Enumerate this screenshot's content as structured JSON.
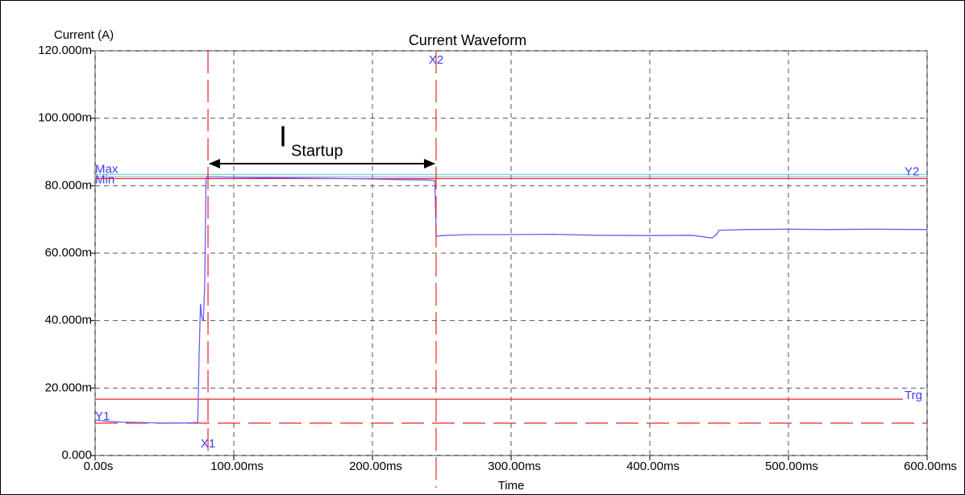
{
  "chart_data": {
    "type": "line",
    "title": "Current Waveform",
    "y_label": "Current (A)",
    "x_label": "Time",
    "color": "#6b5cf0",
    "x": [
      0,
      0.01,
      0.02,
      0.03,
      0.04,
      0.05,
      0.06,
      0.07,
      0.074,
      0.075,
      0.076,
      0.077,
      0.078,
      0.079,
      0.08,
      0.081,
      0.082,
      0.09,
      0.1,
      0.12,
      0.14,
      0.16,
      0.18,
      0.2,
      0.22,
      0.24,
      0.245,
      0.246,
      0.25,
      0.27,
      0.3,
      0.33,
      0.36,
      0.4,
      0.43,
      0.445,
      0.448,
      0.45,
      0.47,
      0.5,
      0.53,
      0.56,
      0.6
    ],
    "values": [
      0.0105,
      0.0101,
      0.0099,
      0.0098,
      0.0097,
      0.0096,
      0.0096,
      0.0097,
      0.0098,
      0.03,
      0.045,
      0.041,
      0.04,
      0.05,
      0.082,
      0.0828,
      0.0826,
      0.0826,
      0.0825,
      0.0824,
      0.0823,
      0.0822,
      0.0821,
      0.082,
      0.0818,
      0.0817,
      0.0815,
      0.065,
      0.0652,
      0.0655,
      0.0655,
      0.0656,
      0.0653,
      0.0652,
      0.0653,
      0.0645,
      0.0655,
      0.0668,
      0.067,
      0.0671,
      0.067,
      0.0671,
      0.067
    ],
    "xlim": [
      0,
      0.6
    ],
    "ylim": [
      0,
      0.12
    ],
    "xticks": [
      {
        "value": 0,
        "label": "0.00s"
      },
      {
        "value": 0.1,
        "label": "100.00ms"
      },
      {
        "value": 0.2,
        "label": "200.00ms"
      },
      {
        "value": 0.3,
        "label": "300.00ms"
      },
      {
        "value": 0.4,
        "label": "400.00ms"
      },
      {
        "value": 0.5,
        "label": "500.00ms"
      },
      {
        "value": 0.6,
        "label": "600.00ms"
      }
    ],
    "yticks": [
      {
        "value": 0,
        "label": "0.000"
      },
      {
        "value": 0.02,
        "label": "20.000m"
      },
      {
        "value": 0.04,
        "label": "40.000m"
      },
      {
        "value": 0.06,
        "label": "60.000m"
      },
      {
        "value": 0.08,
        "label": "80.000m"
      },
      {
        "value": 0.1,
        "label": "100.000m"
      },
      {
        "value": 0.12,
        "label": "120.000m"
      }
    ],
    "grid": true,
    "x_cursors": [
      {
        "label": "X1",
        "value": 0.0814
      },
      {
        "label": "X2",
        "value": 0.2459
      }
    ],
    "y_cursors": [
      {
        "label": "Y1",
        "value": 0.0096
      },
      {
        "label": "Y2",
        "value": 0.0821
      }
    ],
    "trigger": {
      "label": "Trg",
      "value": 0.0167
    },
    "max": {
      "label": "Max",
      "value": 0.0833
    },
    "min": {
      "label": "Min",
      "value": 0.0826
    },
    "annotation": {
      "text": "I",
      "subscript": "Startup"
    }
  }
}
